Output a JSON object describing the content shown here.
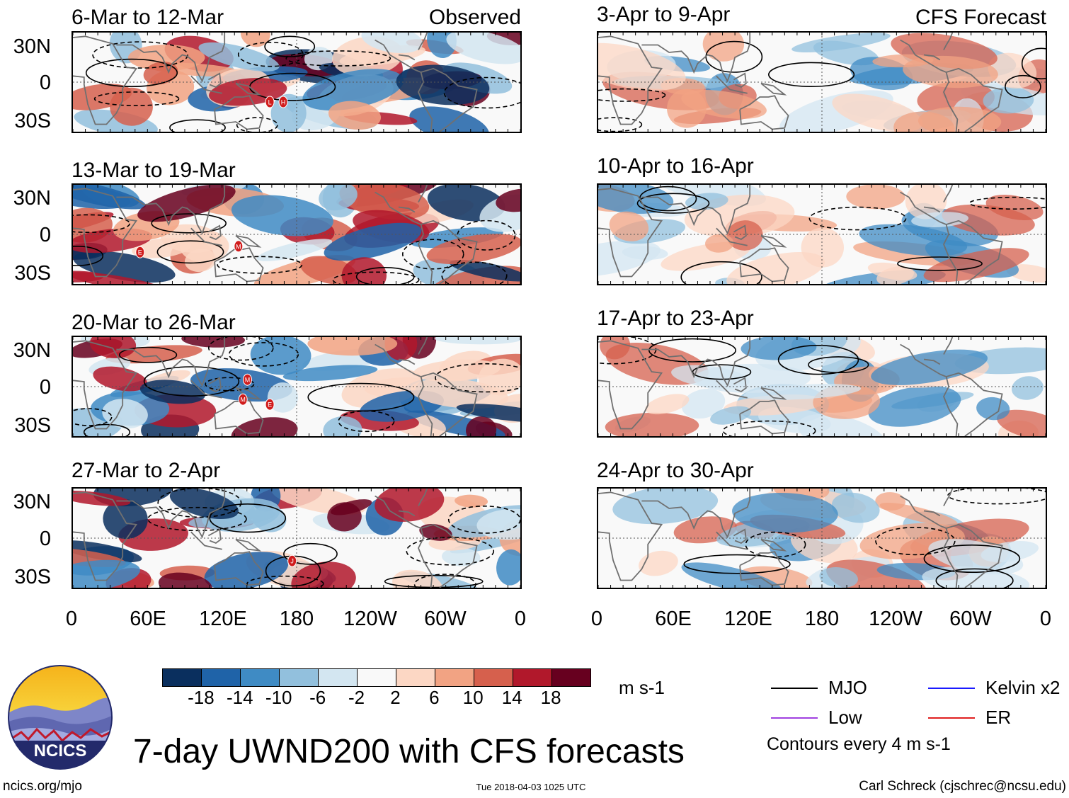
{
  "panels": {
    "left": [
      {
        "title": "6-Mar to 12-Mar",
        "tag": "Observed",
        "markers": [
          "L",
          "H"
        ]
      },
      {
        "title": "13-Mar to 19-Mar",
        "tag": "",
        "markers": [
          "E",
          "M"
        ]
      },
      {
        "title": "20-Mar to 26-Mar",
        "tag": "",
        "markers": [
          "M",
          "M",
          "E"
        ]
      },
      {
        "title": "27-Mar to 2-Apr",
        "tag": "",
        "markers": [
          "J"
        ]
      }
    ],
    "right": [
      {
        "title": "3-Apr to 9-Apr",
        "tag": "CFS Forecast"
      },
      {
        "title": "10-Apr to 16-Apr",
        "tag": ""
      },
      {
        "title": "17-Apr to 23-Apr",
        "tag": ""
      },
      {
        "title": "24-Apr to 30-Apr",
        "tag": ""
      }
    ]
  },
  "lat_labels": [
    "30N",
    "0",
    "30S"
  ],
  "lon_labels": [
    "0",
    "60E",
    "120E",
    "180",
    "120W",
    "60W",
    "0"
  ],
  "colorbar": {
    "colors": [
      "#0a2f5e",
      "#1f63a8",
      "#3f8bc4",
      "#92c0dd",
      "#d3e6f1",
      "#f9f9f9",
      "#fcd7c4",
      "#f2a383",
      "#d6604d",
      "#b1182b",
      "#67001f"
    ],
    "labels": [
      "-18",
      "-14",
      "-10",
      "-6",
      "-2",
      "2",
      "6",
      "10",
      "14",
      "18"
    ],
    "unit": "m s-1"
  },
  "legend": {
    "items": [
      {
        "label": "MJO",
        "color": "#000000"
      },
      {
        "label": "Kelvin x2",
        "color": "#1a1aff"
      },
      {
        "label": "Low",
        "color": "#a040e0"
      },
      {
        "label": "ER",
        "color": "#e02020"
      }
    ],
    "note": "Contours every 4 m s-1"
  },
  "logo": {
    "text": "NCICS"
  },
  "main_title": "7-day UWND200 with CFS forecasts",
  "footer": {
    "left": "ncics.org/mjo",
    "center": "Tue 2018-04-03 1025 UTC",
    "right": "Carl Schreck (cjschrec@ncsu.edu)"
  }
}
